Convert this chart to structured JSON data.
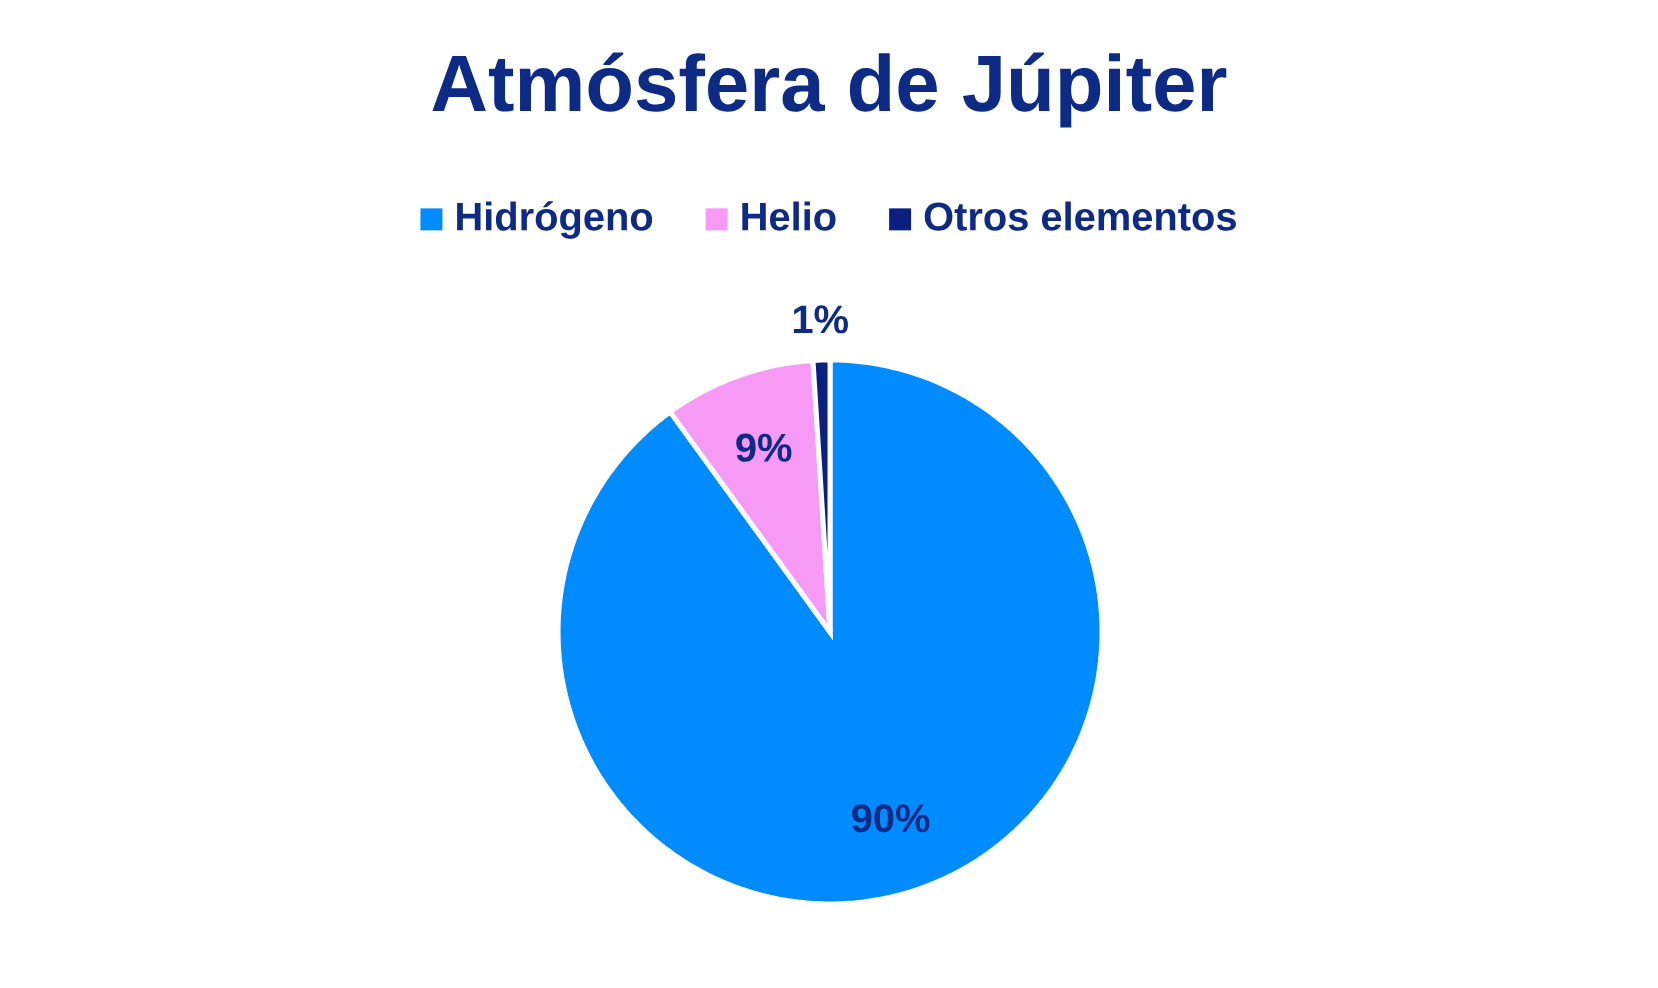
{
  "chart_data": {
    "type": "pie",
    "title": "Atmósfera de Júpiter",
    "categories": [
      "Hidrógeno",
      "Helio",
      "Otros elementos"
    ],
    "values": [
      90,
      9,
      1
    ],
    "colors": [
      "#008cff",
      "#f79af5",
      "#0a2080"
    ],
    "value_labels": [
      "90%",
      "9%",
      "1%"
    ],
    "legend": "top"
  }
}
